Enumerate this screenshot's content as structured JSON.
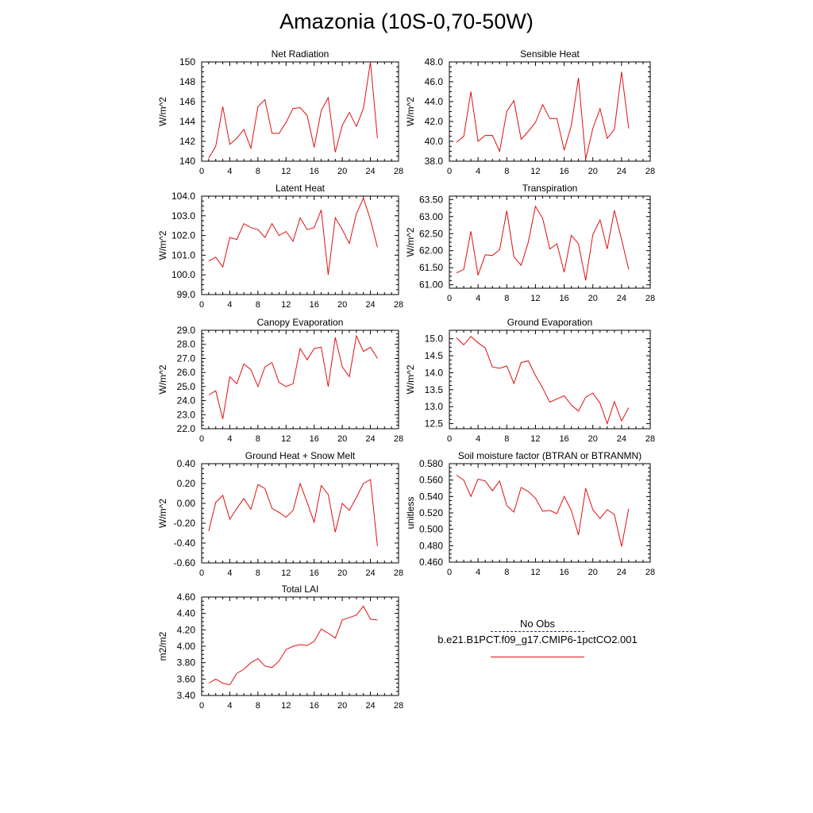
{
  "title": "Amazonia (10S-0,70-50W)",
  "legend": {
    "items": [
      {
        "label": "No Obs",
        "color": "#2b2b8a",
        "style": "dashed"
      },
      {
        "label": "b.e21.B1PCT.f09_g17.CMIP6-1pctCO2.001",
        "color": "#e01010",
        "style": "solid"
      }
    ]
  },
  "chart_data": [
    {
      "type": "line",
      "title": "Net Radiation",
      "ylabel": "W/m^2",
      "xlim": [
        0,
        28
      ],
      "ylim": [
        140,
        150
      ],
      "xticks": [
        0,
        4,
        8,
        12,
        16,
        20,
        24,
        28
      ],
      "yticks": [
        140,
        142,
        144,
        146,
        148,
        150
      ],
      "ytick_labels": [
        "140",
        "142",
        "144",
        "146",
        "148",
        "150"
      ],
      "series": [
        {
          "color": "#e01010",
          "x": [
            1,
            2,
            3,
            4,
            5,
            6,
            7,
            8,
            9,
            10,
            11,
            12,
            13,
            14,
            15,
            16,
            17,
            18,
            19,
            20,
            21,
            22,
            23,
            24,
            25
          ],
          "y": [
            140.3,
            141.5,
            145.5,
            141.7,
            142.3,
            143.2,
            141.3,
            145.5,
            146.2,
            142.8,
            142.8,
            143.9,
            145.3,
            145.4,
            144.6,
            141.4,
            145.1,
            146.4,
            140.9,
            143.6,
            144.9,
            143.5,
            145.3,
            150.0,
            142.3
          ]
        }
      ]
    },
    {
      "type": "line",
      "title": "Sensible Heat",
      "ylabel": "W/m^2",
      "xlim": [
        0,
        28
      ],
      "ylim": [
        38,
        48
      ],
      "xticks": [
        0,
        4,
        8,
        12,
        16,
        20,
        24,
        28
      ],
      "yticks": [
        38,
        40,
        42,
        44,
        46,
        48
      ],
      "ytick_labels": [
        "38.0",
        "40.0",
        "42.0",
        "44.0",
        "46.0",
        "48.0"
      ],
      "series": [
        {
          "color": "#e01010",
          "x": [
            1,
            2,
            3,
            4,
            5,
            6,
            7,
            8,
            9,
            10,
            11,
            12,
            13,
            14,
            15,
            16,
            17,
            18,
            19,
            20,
            21,
            22,
            23,
            24,
            25
          ],
          "y": [
            39.9,
            40.5,
            45.0,
            40.0,
            40.6,
            40.6,
            39.0,
            43.0,
            44.1,
            40.2,
            41.0,
            41.9,
            43.7,
            42.3,
            42.3,
            39.1,
            41.6,
            46.4,
            38.2,
            41.3,
            43.3,
            40.3,
            41.2,
            47.0,
            41.3
          ]
        }
      ]
    },
    {
      "type": "line",
      "title": "Latent Heat",
      "ylabel": "W/m^2",
      "xlim": [
        0,
        28
      ],
      "ylim": [
        99,
        104
      ],
      "xticks": [
        0,
        4,
        8,
        12,
        16,
        20,
        24,
        28
      ],
      "yticks": [
        99,
        100,
        101,
        102,
        103,
        104
      ],
      "ytick_labels": [
        "99.0",
        "100.0",
        "101.0",
        "102.0",
        "103.0",
        "104.0"
      ],
      "series": [
        {
          "color": "#e01010",
          "x": [
            1,
            2,
            3,
            4,
            5,
            6,
            7,
            8,
            9,
            10,
            11,
            12,
            13,
            14,
            15,
            16,
            17,
            18,
            19,
            20,
            21,
            22,
            23,
            24,
            25
          ],
          "y": [
            100.7,
            100.9,
            100.4,
            101.9,
            101.8,
            102.6,
            102.4,
            102.3,
            101.9,
            102.6,
            102.0,
            102.2,
            101.7,
            102.9,
            102.3,
            102.4,
            103.3,
            100.0,
            102.9,
            102.3,
            101.6,
            103.1,
            103.9,
            102.8,
            101.4
          ]
        }
      ]
    },
    {
      "type": "line",
      "title": "Transpiration",
      "ylabel": "W/m^2",
      "xlim": [
        0,
        28
      ],
      "ylim": [
        60.9,
        63.6
      ],
      "xticks": [
        0,
        4,
        8,
        12,
        16,
        20,
        24,
        28
      ],
      "yticks": [
        61.0,
        61.5,
        62.0,
        62.5,
        63.0,
        63.5
      ],
      "ytick_labels": [
        "61.00",
        "61.50",
        "62.00",
        "62.50",
        "63.00",
        "63.50"
      ],
      "series": [
        {
          "color": "#e01010",
          "x": [
            1,
            2,
            3,
            4,
            5,
            6,
            7,
            8,
            9,
            10,
            11,
            12,
            13,
            14,
            15,
            16,
            17,
            18,
            19,
            20,
            21,
            22,
            23,
            24,
            25
          ],
          "y": [
            61.35,
            61.45,
            62.57,
            61.28,
            61.88,
            61.86,
            62.03,
            63.17,
            61.82,
            61.57,
            62.25,
            63.3,
            62.95,
            62.05,
            62.2,
            61.37,
            62.45,
            62.2,
            61.13,
            62.47,
            62.9,
            62.05,
            63.18,
            62.33,
            61.45
          ]
        }
      ]
    },
    {
      "type": "line",
      "title": "Canopy Evaporation",
      "ylabel": "W/m^2",
      "xlim": [
        0,
        28
      ],
      "ylim": [
        22,
        29
      ],
      "xticks": [
        0,
        4,
        8,
        12,
        16,
        20,
        24,
        28
      ],
      "yticks": [
        22,
        23,
        24,
        25,
        26,
        27,
        28,
        29
      ],
      "ytick_labels": [
        "22.0",
        "23.0",
        "24.0",
        "25.0",
        "26.0",
        "27.0",
        "28.0",
        "29.0"
      ],
      "series": [
        {
          "color": "#e01010",
          "x": [
            1,
            2,
            3,
            4,
            5,
            6,
            7,
            8,
            9,
            10,
            11,
            12,
            13,
            14,
            15,
            16,
            17,
            18,
            19,
            20,
            21,
            22,
            23,
            24,
            25
          ],
          "y": [
            24.4,
            24.7,
            22.7,
            25.7,
            25.2,
            26.6,
            26.2,
            25.0,
            26.4,
            26.7,
            25.3,
            25.0,
            25.2,
            27.7,
            26.9,
            27.7,
            27.8,
            25.0,
            28.5,
            26.4,
            25.7,
            28.6,
            27.5,
            27.8,
            27.0
          ]
        }
      ]
    },
    {
      "type": "line",
      "title": "Ground Evaporation",
      "ylabel": "W/m^2",
      "xlim": [
        0,
        28
      ],
      "ylim": [
        12.35,
        15.25
      ],
      "xticks": [
        0,
        4,
        8,
        12,
        16,
        20,
        24,
        28
      ],
      "yticks": [
        12.5,
        13.0,
        13.5,
        14.0,
        14.5,
        15.0
      ],
      "ytick_labels": [
        "12.5",
        "13.0",
        "13.5",
        "14.0",
        "14.5",
        "15.0"
      ],
      "series": [
        {
          "color": "#e01010",
          "x": [
            1,
            2,
            3,
            4,
            5,
            6,
            7,
            8,
            9,
            10,
            11,
            12,
            13,
            14,
            15,
            16,
            17,
            18,
            19,
            20,
            21,
            22,
            23,
            24,
            25
          ],
          "y": [
            15.03,
            14.82,
            15.07,
            14.88,
            14.73,
            14.17,
            14.13,
            14.2,
            13.68,
            14.3,
            14.35,
            13.92,
            13.55,
            13.13,
            13.23,
            13.32,
            13.05,
            12.87,
            13.28,
            13.4,
            13.1,
            12.5,
            13.15,
            12.58,
            12.97
          ]
        }
      ]
    },
    {
      "type": "line",
      "title": "Ground Heat + Snow Melt",
      "ylabel": "W/m^2",
      "xlim": [
        0,
        28
      ],
      "ylim": [
        -0.6,
        0.4
      ],
      "xticks": [
        0,
        4,
        8,
        12,
        16,
        20,
        24,
        28
      ],
      "yticks": [
        -0.6,
        -0.4,
        -0.2,
        0.0,
        0.2,
        0.4
      ],
      "ytick_labels": [
        "-0.60",
        "-0.40",
        "-0.20",
        "0.00",
        "0.20",
        "0.40"
      ],
      "series": [
        {
          "color": "#e01010",
          "x": [
            1,
            2,
            3,
            4,
            5,
            6,
            7,
            8,
            9,
            10,
            11,
            12,
            13,
            14,
            15,
            16,
            17,
            18,
            19,
            20,
            21,
            22,
            23,
            24,
            25
          ],
          "y": [
            -0.28,
            0.01,
            0.08,
            -0.16,
            -0.05,
            0.05,
            -0.06,
            0.19,
            0.15,
            -0.05,
            -0.09,
            -0.14,
            -0.07,
            0.2,
            0.01,
            -0.19,
            0.18,
            0.09,
            -0.29,
            0.0,
            -0.07,
            0.06,
            0.2,
            0.24,
            -0.43
          ]
        }
      ]
    },
    {
      "type": "line",
      "title": "Soil moisture factor (BTRAN or BTRANMN)",
      "ylabel": "unitless",
      "xlim": [
        0,
        28
      ],
      "ylim": [
        0.46,
        0.58
      ],
      "xticks": [
        0,
        4,
        8,
        12,
        16,
        20,
        24,
        28
      ],
      "yticks": [
        0.46,
        0.48,
        0.5,
        0.52,
        0.54,
        0.56,
        0.58
      ],
      "ytick_labels": [
        "0.460",
        "0.480",
        "0.500",
        "0.520",
        "0.540",
        "0.560",
        "0.580"
      ],
      "series": [
        {
          "color": "#e01010",
          "x": [
            1,
            2,
            3,
            4,
            5,
            6,
            7,
            8,
            9,
            10,
            11,
            12,
            13,
            14,
            15,
            16,
            17,
            18,
            19,
            20,
            21,
            22,
            23,
            24,
            25
          ],
          "y": [
            0.566,
            0.56,
            0.54,
            0.561,
            0.559,
            0.547,
            0.559,
            0.529,
            0.521,
            0.551,
            0.546,
            0.538,
            0.522,
            0.523,
            0.519,
            0.54,
            0.523,
            0.493,
            0.55,
            0.524,
            0.513,
            0.524,
            0.518,
            0.479,
            0.525
          ]
        }
      ]
    },
    {
      "type": "line",
      "title": "Total LAI",
      "ylabel": "m2/m2",
      "xlim": [
        0,
        28
      ],
      "ylim": [
        3.4,
        4.6
      ],
      "xticks": [
        0,
        4,
        8,
        12,
        16,
        20,
        24,
        28
      ],
      "yticks": [
        3.4,
        3.6,
        3.8,
        4.0,
        4.2,
        4.4,
        4.6
      ],
      "ytick_labels": [
        "3.40",
        "3.60",
        "3.80",
        "4.00",
        "4.20",
        "4.40",
        "4.60"
      ],
      "series": [
        {
          "color": "#e01010",
          "x": [
            1,
            2,
            3,
            4,
            5,
            6,
            7,
            8,
            9,
            10,
            11,
            12,
            13,
            14,
            15,
            16,
            17,
            18,
            19,
            20,
            21,
            22,
            23,
            24,
            25
          ],
          "y": [
            3.55,
            3.6,
            3.55,
            3.53,
            3.67,
            3.72,
            3.8,
            3.85,
            3.76,
            3.74,
            3.82,
            3.96,
            4.0,
            4.02,
            4.01,
            4.06,
            4.21,
            4.16,
            4.1,
            4.32,
            4.35,
            4.38,
            4.49,
            4.33,
            4.32
          ]
        }
      ]
    }
  ]
}
